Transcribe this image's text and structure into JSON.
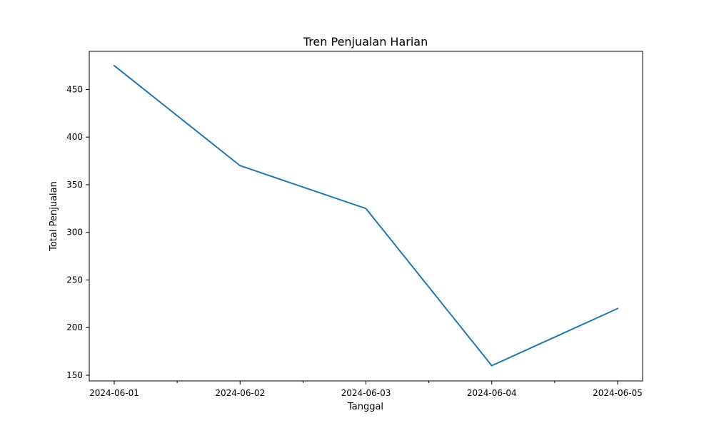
{
  "chart_data": {
    "type": "line",
    "title": "Tren Penjualan Harian",
    "xlabel": "Tanggal",
    "ylabel": "Total Penjualan",
    "x": [
      "2024-06-01",
      "2024-06-02",
      "2024-06-03",
      "2024-06-04",
      "2024-06-05"
    ],
    "series": [
      {
        "values": [
          475,
          370,
          325,
          160,
          220
        ],
        "color": "#1f77b4"
      }
    ],
    "x_tick_labels": [
      "2024-06-01",
      "2024-06-02",
      "2024-06-03",
      "2024-06-04",
      "2024-06-05"
    ],
    "y_ticks": [
      150,
      200,
      250,
      300,
      350,
      400,
      450
    ],
    "ylim": [
      144,
      490
    ],
    "grid": false,
    "legend": "none"
  }
}
